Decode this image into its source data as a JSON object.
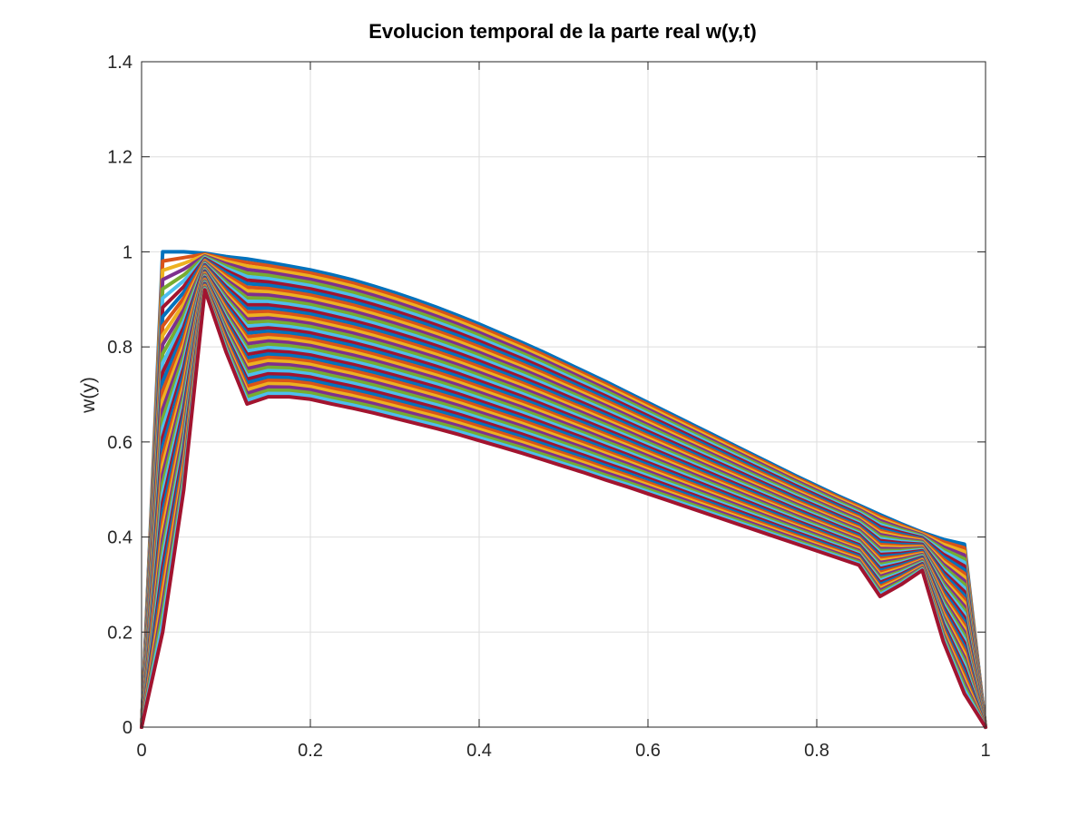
{
  "chart_data": {
    "type": "line",
    "title": "Evolucion temporal de la parte real w(y,t)",
    "xlabel": "",
    "ylabel": "w(y)",
    "xlim": [
      0,
      1
    ],
    "ylim": [
      0,
      1.4
    ],
    "grid": true,
    "legend": "none",
    "x_ticks": [
      "0",
      "0.2",
      "0.4",
      "0.6",
      "0.8",
      "1"
    ],
    "y_ticks": [
      "0",
      "0.2",
      "0.4",
      "0.6",
      "0.8",
      "1",
      "1.2",
      "1.4"
    ],
    "x": [
      0,
      0.025,
      0.05,
      0.075,
      0.1,
      0.125,
      0.15,
      0.175,
      0.2,
      0.225,
      0.25,
      0.275,
      0.3,
      0.325,
      0.35,
      0.375,
      0.4,
      0.425,
      0.45,
      0.475,
      0.5,
      0.525,
      0.55,
      0.575,
      0.6,
      0.625,
      0.65,
      0.675,
      0.7,
      0.725,
      0.75,
      0.775,
      0.8,
      0.825,
      0.85,
      0.875,
      0.9,
      0.925,
      0.95,
      0.975,
      1
    ],
    "series_first": {
      "values": [
        0,
        1.0,
        1.0,
        0.997,
        0.99,
        0.985,
        0.978,
        0.97,
        0.962,
        0.952,
        0.941,
        0.928,
        0.914,
        0.899,
        0.883,
        0.866,
        0.848,
        0.829,
        0.81,
        0.79,
        0.769,
        0.748,
        0.727,
        0.705,
        0.683,
        0.661,
        0.639,
        0.617,
        0.595,
        0.573,
        0.551,
        0.529,
        0.508,
        0.487,
        0.467,
        0.447,
        0.428,
        0.41,
        0.395,
        0.385,
        0
      ]
    },
    "series_last": {
      "values": [
        0,
        0.2,
        0.5,
        0.92,
        0.79,
        0.68,
        0.695,
        0.695,
        0.69,
        0.68,
        0.671,
        0.661,
        0.65,
        0.639,
        0.628,
        0.616,
        0.603,
        0.59,
        0.577,
        0.563,
        0.549,
        0.535,
        0.52,
        0.506,
        0.491,
        0.476,
        0.461,
        0.446,
        0.431,
        0.416,
        0.401,
        0.386,
        0.371,
        0.356,
        0.341,
        0.275,
        0.3,
        0.33,
        0.18,
        0.07,
        0
      ]
    },
    "series_count": 42,
    "colors": [
      "#0072BD",
      "#D95319",
      "#EDB120",
      "#7E2F8E",
      "#77AC30",
      "#4DBEEE",
      "#A2142F"
    ]
  }
}
